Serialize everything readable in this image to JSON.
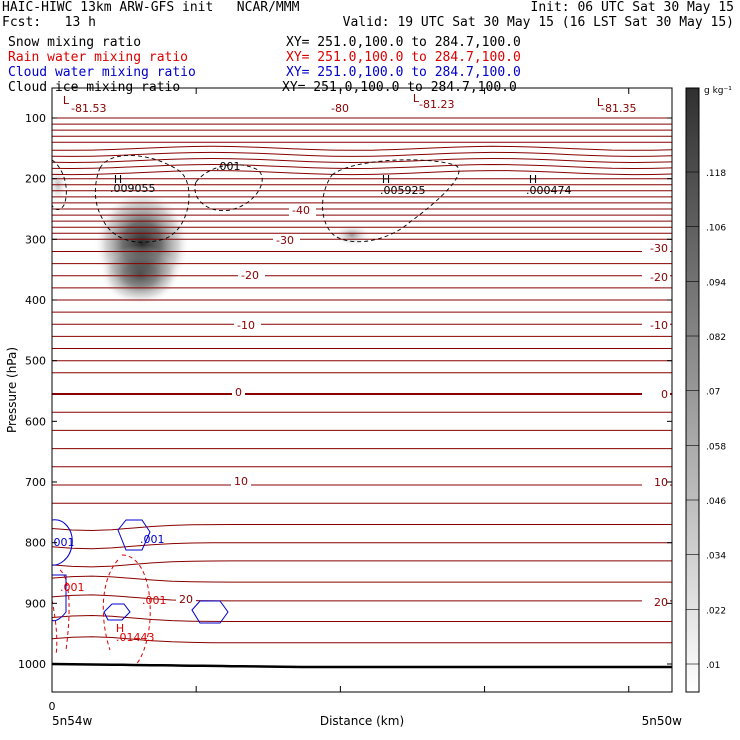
{
  "header": {
    "line1_left": "HAIC-HIWC 13km ARW-GFS init   NCAR/MMM",
    "line1_right": "Init: 06 UTC Sat 30 May 15",
    "line2_left": "Fcst:   13 h",
    "line2_right": "Valid: 19 UTC Sat 30 May 15 (16 LST Sat 30 May 15)",
    "fields": [
      {
        "name": "Snow mixing ratio",
        "xy": "XY= 251.0,100.0 to 284.7,100.0",
        "color": "#000000"
      },
      {
        "name": "Rain water mixing ratio",
        "xy": "XY= 251.0,100.0 to 284.7,100.0",
        "color": "#dd0000"
      },
      {
        "name": "Cloud water mixing ratio",
        "xy": "XY= 251.0,100.0 to 284.7,100.0",
        "color": "#0000cc"
      },
      {
        "name": "Cloud ice mixing ratio",
        "xy": "XY= 251.0,100.0 to 284.7,100.0",
        "color": "#000000"
      }
    ]
  },
  "chart_data": {
    "type": "heatmap",
    "ylabel": "Pressure (hPa)",
    "xlabel": "Distance (km)",
    "y_ticks": [
      100,
      200,
      300,
      400,
      500,
      600,
      700,
      800,
      900,
      1000
    ],
    "ylim": [
      1050,
      70
    ],
    "x_tick_label": "0",
    "x_left_label": "5n54w",
    "x_right_label": "5n50w",
    "colorbar": {
      "unit": "g kg⁻¹",
      "ticks": [
        ".01",
        ".022",
        ".034",
        ".046",
        ".058",
        ".07",
        ".082",
        ".094",
        ".106",
        ".118"
      ]
    },
    "temperature_contours": [
      {
        "label": "-81.53",
        "p": 108
      },
      {
        "label": "-80",
        "p": 108
      },
      {
        "label": "-81.23",
        "p": 108
      },
      {
        "label": "-81.35",
        "p": 108
      },
      {
        "label": "-40",
        "p": 258
      },
      {
        "label": "-30",
        "p": 300
      },
      {
        "label": "-20",
        "p": 360
      },
      {
        "label": "-10",
        "p": 440
      },
      {
        "label": "0",
        "p": 555
      },
      {
        "label": "10",
        "p": 675
      },
      {
        "label": "20",
        "p": 896
      }
    ],
    "extrema": [
      {
        "kind": "L",
        "value": "",
        "color": "#880000"
      },
      {
        "kind": "L",
        "value": "",
        "color": "#880000"
      },
      {
        "kind": "L",
        "value": "",
        "color": "#880000"
      },
      {
        "kind": "H",
        "value": ".009055",
        "color": "#000000"
      },
      {
        "kind": "H",
        "value": ".005925",
        "color": "#000000"
      },
      {
        "kind": "H",
        "value": ".000474",
        "color": "#000000"
      },
      {
        "kind": "H",
        "value": ".01443",
        "color": "#dd0000"
      }
    ],
    "contour_labels": [
      {
        "text": ".001",
        "color": "#000000"
      },
      {
        "text": ".001",
        "color": "#0000cc"
      },
      {
        "text": ".001",
        "color": "#0000cc"
      },
      {
        "text": ".001",
        "color": "#dd0000"
      },
      {
        "text": ".001",
        "color": "#dd0000"
      }
    ],
    "colors": {
      "temperature": "#880000",
      "snow": "#000000",
      "rain": "#dd0000",
      "cloud_water": "#0000cc",
      "terrain": "#000000"
    }
  }
}
